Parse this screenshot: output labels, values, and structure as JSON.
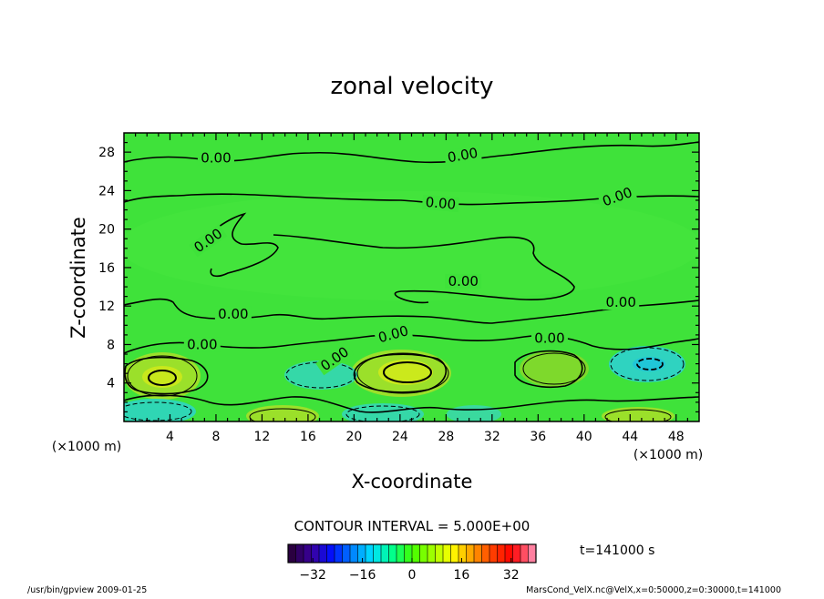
{
  "chart_data": {
    "type": "heatmap",
    "title": "zonal velocity",
    "xlabel": "X-coordinate",
    "ylabel": "Z-coordinate",
    "x_unit": "(×1000 m)",
    "y_unit": "(×1000 m)",
    "xlim": [
      0,
      50
    ],
    "ylim": [
      0,
      30
    ],
    "xticks": [
      "4",
      "8",
      "12",
      "16",
      "20",
      "24",
      "28",
      "32",
      "36",
      "40",
      "44",
      "48"
    ],
    "yticks": [
      "4",
      "8",
      "12",
      "16",
      "20",
      "24",
      "28"
    ],
    "contour_interval": "CONTOUR INTERVAL = 5.000E+00",
    "time_label": "t=141000 s",
    "colorbar": {
      "min": -40,
      "max": 40,
      "ticks": [
        "−32",
        "−16",
        "0",
        "16",
        "32"
      ],
      "colors": [
        "#2a0040",
        "#3a00a0",
        "#0010ff",
        "#0080ff",
        "#00e0ff",
        "#00ff90",
        "#40ff00",
        "#a0ff00",
        "#ffff00",
        "#ffa000",
        "#ff4000",
        "#ff0000",
        "#ff80a0"
      ]
    },
    "contour_labels": [
      "0.00",
      "0.00",
      "0.00",
      "0.00",
      "0.00",
      "0.00",
      "0.00",
      "0.00",
      "0.00",
      "0.00",
      "0.00",
      "0.00"
    ],
    "background_field": "#3fe23a"
  },
  "footer": {
    "left": "/usr/bin/gpview   2009-01-25",
    "right": "MarsCond_VelX.nc@VelX,x=0:50000,z=0:30000,t=141000"
  }
}
